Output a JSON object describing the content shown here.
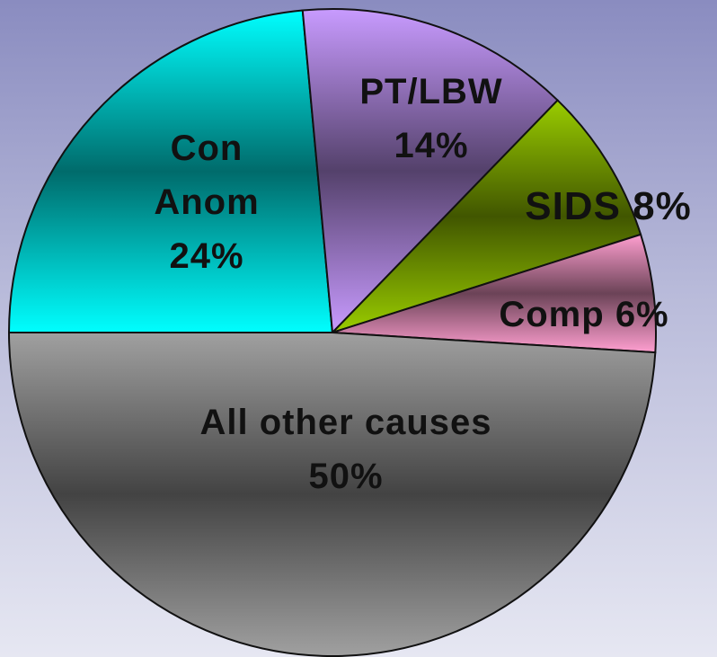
{
  "chart_data": {
    "type": "pie",
    "categories": [
      "Con Anom",
      "PT/LBW",
      "SIDS",
      "Comp",
      "All other causes"
    ],
    "values": [
      24,
      14,
      8,
      6,
      50
    ],
    "value_labels": [
      "24%",
      "14%",
      "8%",
      "6%",
      "50%"
    ],
    "colors": [
      "#00ffff",
      "#c89bff",
      "#9acd00",
      "#ff9fd0",
      "#a0a0a0"
    ]
  }
}
